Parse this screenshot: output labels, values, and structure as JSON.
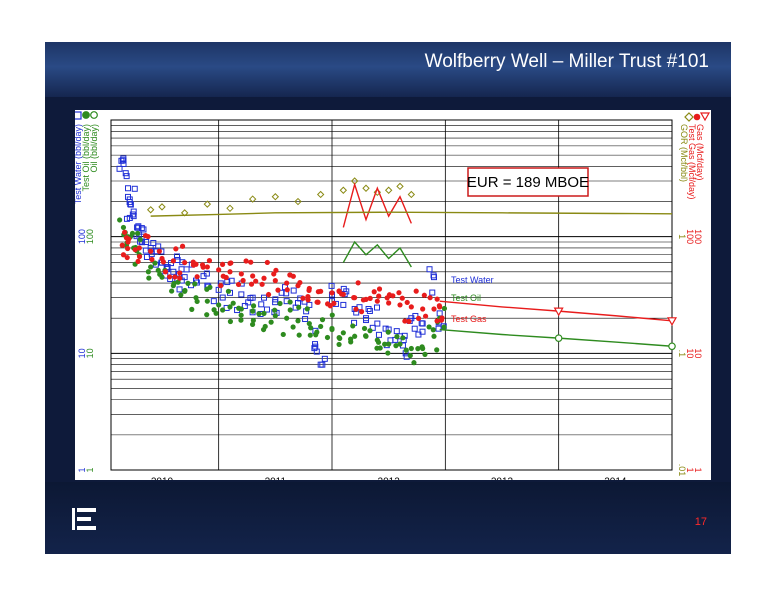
{
  "slide": {
    "title": "Wolfberry Well – Miller Trust #101",
    "page_number": "17",
    "logo_icon": "company-logo-icon",
    "colors": {
      "background": "#0e1a3a",
      "header": "#2a4a85",
      "title_text": "#ffffff",
      "page_number": "#ff2a2a"
    }
  },
  "chart_data": {
    "type": "scatter",
    "title": "",
    "annotation": "EUR = 189 MBOE",
    "x_ticks": [
      "2010",
      "2011",
      "2012",
      "2013",
      "2014"
    ],
    "xlim": [
      2009.55,
      2014.5
    ],
    "ylim": [
      1,
      1000
    ],
    "y_scale": "log",
    "grid": true,
    "left_axis_labels": [
      "Test Water (bbl/day)",
      "Test Oil (bbl/day)",
      "Oil (bbl/day)"
    ],
    "right_axis_labels": [
      "GOR (Mcf/bbl)",
      "Test Gas (Mcf/day)",
      "Gas (Mcf/day)"
    ],
    "left_tick_labels": {
      "100": [
        "100",
        "100"
      ],
      "10": [
        "10",
        "10"
      ],
      "1": [
        "1",
        "1"
      ]
    },
    "right_tick_labels": {
      "100": [
        "1",
        "100",
        "100"
      ],
      "10": [
        ".1",
        "10",
        "10"
      ],
      "1": [
        ".01",
        "1",
        "1"
      ]
    },
    "series": [
      {
        "name": "Test Water",
        "color": "#1f2fd6",
        "marker": "square",
        "x": [
          2009.66,
          2009.68,
          2009.7,
          2009.72,
          2009.75,
          2009.78,
          2009.82,
          2009.86,
          2009.9,
          2009.95,
          2010.0,
          2010.05,
          2010.1,
          2010.15,
          2010.2,
          2010.3,
          2010.4,
          2010.5,
          2010.6,
          2010.7,
          2010.8,
          2010.9,
          2011.0,
          2011.1,
          2011.2,
          2011.3,
          2011.35,
          2011.4,
          2011.5,
          2011.6,
          2011.7,
          2011.8,
          2011.9,
          2012.0,
          2012.1,
          2012.15,
          2012.2,
          2012.3,
          2012.4,
          2012.45
        ],
        "y": [
          450,
          350,
          260,
          190,
          150,
          120,
          100,
          90,
          80,
          75,
          60,
          55,
          50,
          48,
          45,
          42,
          38,
          35,
          33,
          32,
          30,
          30,
          29,
          28,
          27,
          26,
          12,
          8,
          28,
          26,
          24,
          20,
          18,
          16,
          14,
          10,
          20,
          18,
          45,
          22
        ]
      },
      {
        "name": "Test Oil",
        "color": "#2e8b1f",
        "marker": "circle",
        "x": [
          2009.66,
          2009.7,
          2009.75,
          2009.8,
          2009.9,
          2010.0,
          2010.1,
          2010.2,
          2010.3,
          2010.4,
          2010.5,
          2010.6,
          2010.7,
          2010.8,
          2010.9,
          2011.0,
          2011.1,
          2011.2,
          2011.3,
          2011.4,
          2011.5,
          2011.6,
          2011.7,
          2011.8,
          2011.9,
          2012.0,
          2012.1,
          2012.2,
          2012.3,
          2012.4,
          2012.45
        ],
        "y": [
          120,
          100,
          80,
          70,
          55,
          45,
          38,
          34,
          30,
          28,
          26,
          25,
          24,
          23,
          22,
          21,
          20,
          19,
          18,
          17,
          16,
          15,
          14,
          14,
          13,
          12,
          12,
          11,
          11,
          14,
          20
        ]
      },
      {
        "name": "Test Gas",
        "color": "#e81c1c",
        "marker": "circle",
        "x": [
          2009.66,
          2009.7,
          2009.8,
          2009.9,
          2010.0,
          2010.1,
          2010.2,
          2010.3,
          2010.4,
          2010.5,
          2010.6,
          2010.7,
          2010.8,
          2010.9,
          2011.0,
          2011.1,
          2011.2,
          2011.3,
          2011.4,
          2011.5,
          2011.6,
          2011.7,
          2011.8,
          2011.9,
          2012.0,
          2012.1,
          2012.2,
          2012.3,
          2012.4,
          2012.45
        ],
        "y": [
          70,
          90,
          80,
          75,
          65,
          62,
          60,
          58,
          55,
          52,
          50,
          48,
          46,
          44,
          42,
          40,
          38,
          36,
          34,
          33,
          32,
          30,
          29,
          28,
          27,
          26,
          25,
          24,
          24,
          25
        ]
      },
      {
        "name": "GOR (Mcf/bbl)",
        "color": "#8a8a14",
        "marker": "diamond",
        "x": [
          2009.9,
          2010.0,
          2010.2,
          2010.4,
          2010.6,
          2010.8,
          2011.0,
          2011.2,
          2011.4,
          2011.6,
          2011.7,
          2011.8,
          2011.9,
          2012.0,
          2012.1,
          2012.2
        ],
        "y": [
          170,
          180,
          160,
          190,
          175,
          210,
          220,
          200,
          230,
          250,
          300,
          260,
          240,
          250,
          270,
          230
        ]
      },
      {
        "name": "Gas (Mcf/day)",
        "color": "#e81c1c",
        "marker": "line",
        "x": [
          2011.6,
          2011.7,
          2011.8,
          2011.9,
          2012.0,
          2012.1,
          2012.2
        ],
        "y": [
          120,
          280,
          140,
          260,
          150,
          220,
          130
        ]
      },
      {
        "name": "Oil (bbl/day)",
        "color": "#2e8b1f",
        "marker": "line",
        "x": [
          2011.6,
          2011.7,
          2011.8,
          2011.9,
          2012.0,
          2012.1,
          2012.2
        ],
        "y": [
          60,
          90,
          70,
          85,
          65,
          80,
          55
        ]
      },
      {
        "name": "Oil (bbl/day) forecast",
        "color": "#2e8b1f",
        "marker": "line-circle",
        "x": [
          2012.45,
          2013.0,
          2013.5,
          2014.0,
          2014.5
        ],
        "y": [
          16,
          14.5,
          13.5,
          12.5,
          11.5
        ]
      },
      {
        "name": "Gas (Mcf/day) forecast",
        "color": "#e81c1c",
        "marker": "line-triangle",
        "x": [
          2012.45,
          2013.0,
          2013.5,
          2014.0,
          2014.5
        ],
        "y": [
          28,
          25,
          23,
          21,
          19
        ]
      },
      {
        "name": "GOR forecast",
        "color": "#8a8a14",
        "marker": "line",
        "x": [
          2009.9,
          2010.5,
          2011.0,
          2012.0,
          2013.0,
          2014.0,
          2014.5
        ],
        "y": [
          150,
          155,
          160,
          162,
          160,
          158,
          157
        ]
      }
    ]
  }
}
